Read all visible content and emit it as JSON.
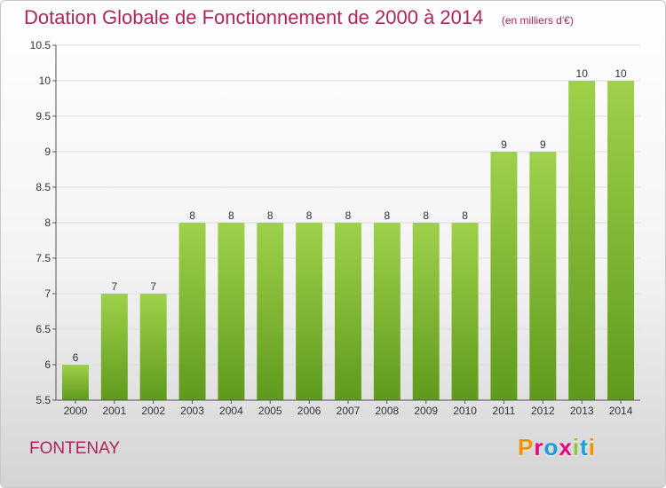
{
  "header": {
    "title": "Dotation Globale de Fonctionnement de 2000 à 2014",
    "unit": "(en milliers d'€)"
  },
  "footer": {
    "place": "FONTENAY",
    "logo": "Proxiti",
    "logo_colors": [
      "#f39200",
      "#e6007e",
      "#1d9bd7",
      "#e6007e",
      "#8cc63f",
      "#1d9bd7",
      "#f39200"
    ]
  },
  "colors": {
    "bar_top": "#9fd14a",
    "bar_bottom": "#5f9a1c",
    "axis": "#555555",
    "grid": "#dddddd",
    "title": "#b0245e"
  },
  "chart_data": {
    "type": "bar",
    "categories": [
      "2000",
      "2001",
      "2002",
      "2003",
      "2004",
      "2005",
      "2006",
      "2007",
      "2008",
      "2009",
      "2010",
      "2011",
      "2012",
      "2013",
      "2014"
    ],
    "values": [
      6,
      7,
      7,
      8,
      8,
      8,
      8,
      8,
      8,
      8,
      8,
      9,
      9,
      10,
      10
    ],
    "title": "Dotation Globale de Fonctionnement de 2000 à 2014",
    "ylim": [
      5.5,
      10.5
    ],
    "yticks": [
      "5.5",
      "6",
      "6.5",
      "7",
      "7.5",
      "8",
      "8.5",
      "9",
      "9.5",
      "10",
      "10.5"
    ],
    "grid": true,
    "legend": "none"
  }
}
